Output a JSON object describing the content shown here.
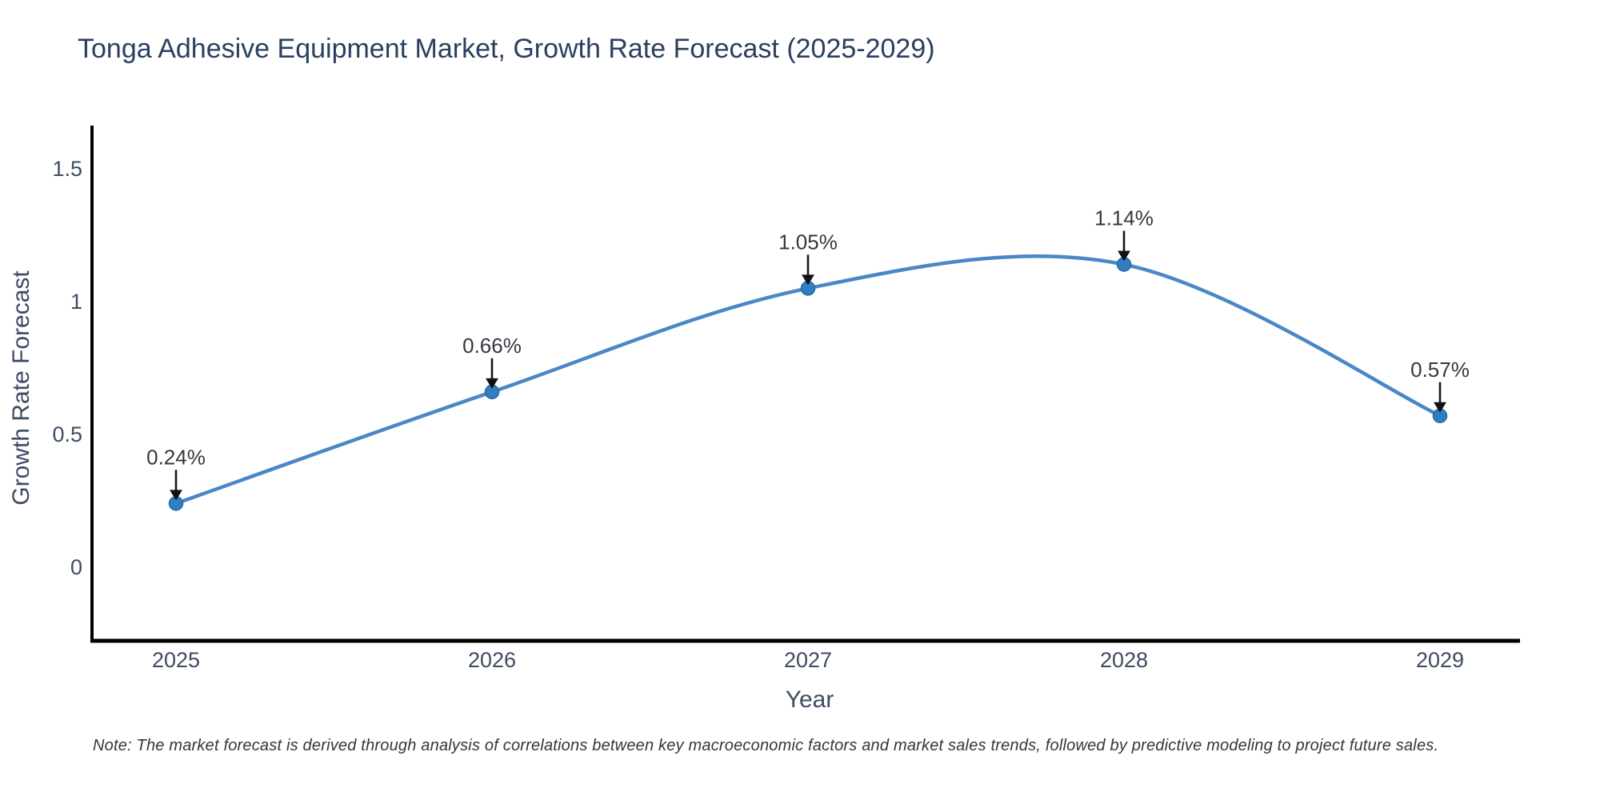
{
  "chart_data": {
    "type": "line",
    "line_shape": "spline",
    "title": "Tonga Adhesive Equipment Market, Growth Rate Forecast (2025-2029)",
    "xlabel": "Year",
    "ylabel": "Growth Rate Forecast",
    "note": "Note: The market forecast is derived through analysis of correlations between key macroeconomic factors and market sales trends, followed by predictive modeling to project future sales.",
    "categories": [
      "2025",
      "2026",
      "2027",
      "2028",
      "2029"
    ],
    "series": [
      {
        "name": "Growth Rate Forecast",
        "values": [
          0.24,
          0.66,
          1.05,
          1.14,
          0.57
        ]
      }
    ],
    "point_labels": [
      "0.24%",
      "0.66%",
      "1.05%",
      "1.14%",
      "0.57%"
    ],
    "yticks": [
      "0",
      "0.5",
      "1",
      "1.5"
    ],
    "ytick_values": [
      0,
      0.5,
      1,
      1.5
    ],
    "ylim": [
      -0.28,
      1.66
    ],
    "grid": false,
    "legend": "none",
    "colors": {
      "line": "#4a87c6",
      "marker": "#327ec4",
      "marker_edge": "#2268a5",
      "axis": "#000000",
      "title_text": "#2a3f5f",
      "tick_text": "#3d4b63",
      "annotation_text": "#33383f",
      "arrow": "#111111",
      "background": "#ffffff"
    }
  }
}
